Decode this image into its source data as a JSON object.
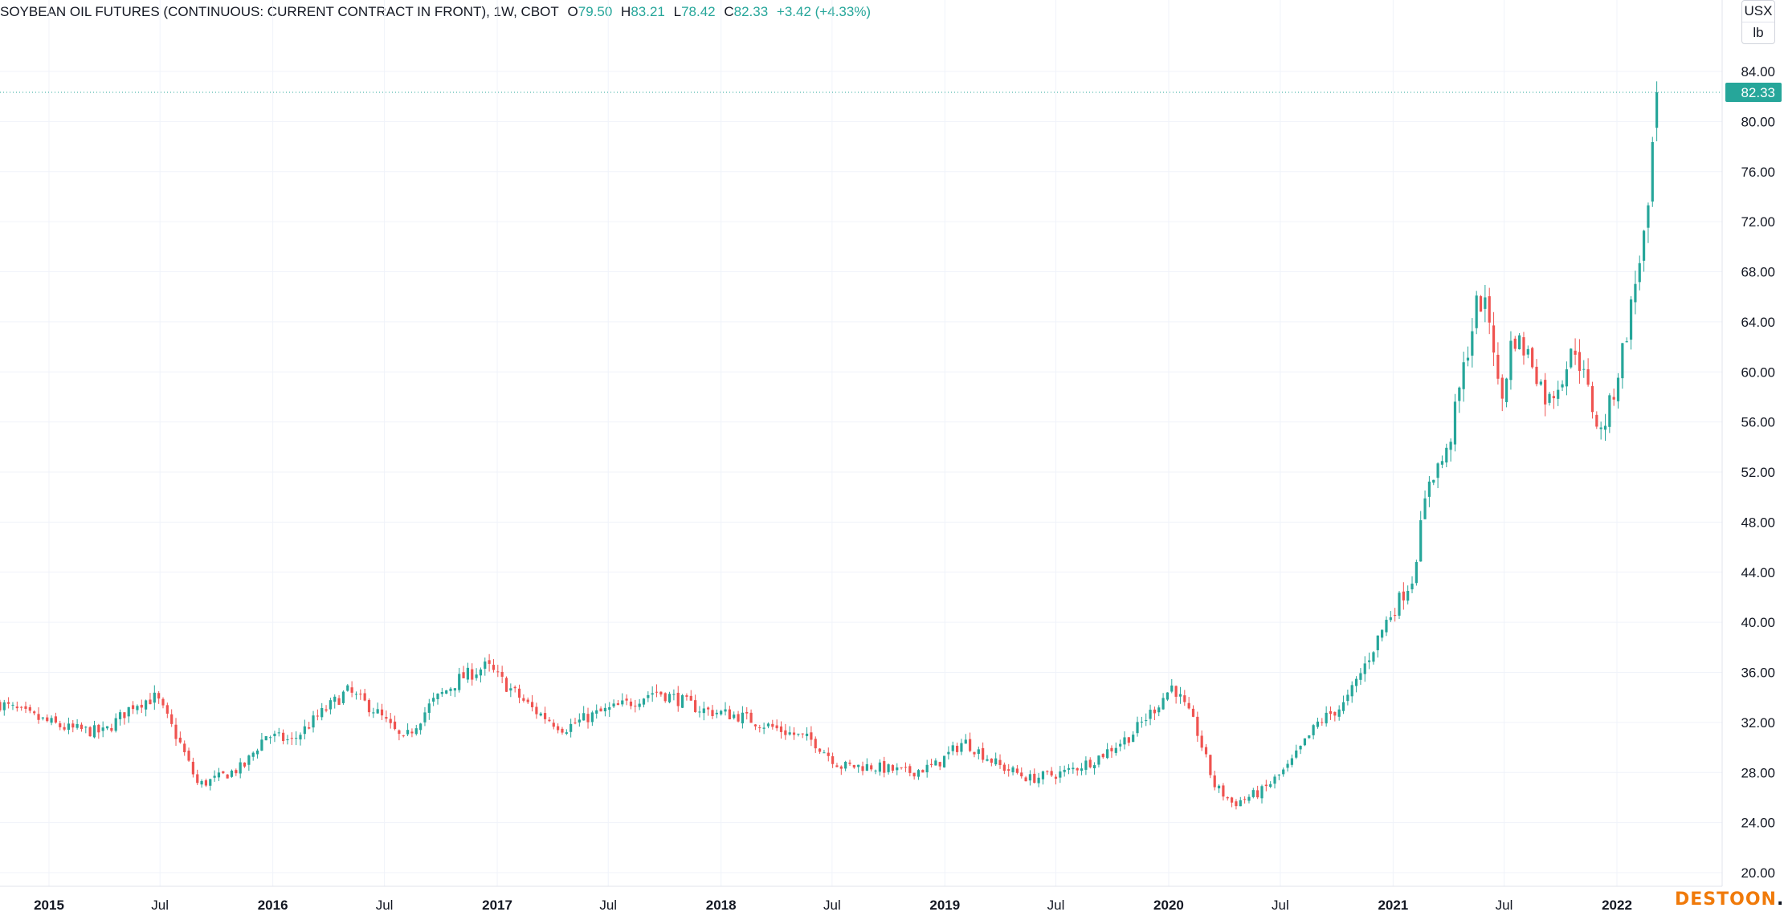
{
  "header": {
    "symbol": "SOYBEAN OIL FUTURES (CONTINUOUS: CURRENT CONTRACT IN FRONT), 1W, CBOT",
    "open_label": "O",
    "open": "79.50",
    "high_label": "H",
    "high": "83.21",
    "low_label": "L",
    "low": "78.42",
    "close_label": "C",
    "close": "82.33",
    "change": "+3.42 (+4.33%)"
  },
  "unit": {
    "currency": "USX",
    "measure": "lb"
  },
  "watermark": {
    "brand": "DESTOON",
    "suffix": ".COM"
  },
  "colors": {
    "up": "#26a69a",
    "down": "#ef5350",
    "last_price": "#26a69a",
    "grid": "#f0f3fa",
    "axis_text": "#131722"
  },
  "chart_data": {
    "type": "candlestick",
    "interval": "1W",
    "ylim": [
      20,
      84
    ],
    "yticks": [
      "84.00",
      "80.00",
      "76.00",
      "72.00",
      "68.00",
      "64.00",
      "60.00",
      "56.00",
      "52.00",
      "48.00",
      "44.00",
      "40.00",
      "36.00",
      "32.00",
      "28.00",
      "24.00",
      "20.00"
    ],
    "xticks": [
      {
        "label": "2015",
        "date": "2015-01-01",
        "bold": true
      },
      {
        "label": "Jul",
        "date": "2015-07-01",
        "bold": false
      },
      {
        "label": "2016",
        "date": "2016-01-01",
        "bold": true
      },
      {
        "label": "Jul",
        "date": "2016-07-01",
        "bold": false
      },
      {
        "label": "2017",
        "date": "2017-01-01",
        "bold": true
      },
      {
        "label": "Jul",
        "date": "2017-07-01",
        "bold": false
      },
      {
        "label": "2018",
        "date": "2018-01-01",
        "bold": true
      },
      {
        "label": "Jul",
        "date": "2018-07-01",
        "bold": false
      },
      {
        "label": "2019",
        "date": "2019-01-01",
        "bold": true
      },
      {
        "label": "Jul",
        "date": "2019-07-01",
        "bold": false
      },
      {
        "label": "2020",
        "date": "2020-01-01",
        "bold": true
      },
      {
        "label": "Jul",
        "date": "2020-07-01",
        "bold": false
      },
      {
        "label": "2021",
        "date": "2021-01-01",
        "bold": true
      },
      {
        "label": "Jul",
        "date": "2021-07-01",
        "bold": false
      },
      {
        "label": "2022",
        "date": "2022-01-01",
        "bold": true
      }
    ],
    "last_price": "82.33",
    "series_start": "2014-10-13",
    "series_end": "2022-03-07",
    "price_path": [
      [
        "2014-10-13",
        33.5
      ],
      [
        "2014-12-01",
        32.5
      ],
      [
        "2015-02-01",
        31.5
      ],
      [
        "2015-04-01",
        31.2
      ],
      [
        "2015-05-20",
        33.5
      ],
      [
        "2015-06-25",
        34.0
      ],
      [
        "2015-08-01",
        30.5
      ],
      [
        "2015-09-01",
        27.0
      ],
      [
        "2015-10-01",
        27.5
      ],
      [
        "2015-11-15",
        28.5
      ],
      [
        "2015-12-20",
        31.0
      ],
      [
        "2016-02-01",
        30.5
      ],
      [
        "2016-03-15",
        32.5
      ],
      [
        "2016-05-01",
        34.5
      ],
      [
        "2016-06-15",
        33.0
      ],
      [
        "2016-08-01",
        30.5
      ],
      [
        "2016-09-15",
        33.5
      ],
      [
        "2016-11-01",
        35.5
      ],
      [
        "2016-12-15",
        36.5
      ],
      [
        "2017-01-15",
        35.0
      ],
      [
        "2017-03-01",
        33.0
      ],
      [
        "2017-04-20",
        31.5
      ],
      [
        "2017-06-01",
        32.5
      ],
      [
        "2017-08-01",
        33.5
      ],
      [
        "2017-09-15",
        34.5
      ],
      [
        "2017-10-15",
        34.0
      ],
      [
        "2017-12-01",
        33.0
      ],
      [
        "2018-02-01",
        32.5
      ],
      [
        "2018-04-01",
        31.5
      ],
      [
        "2018-06-01",
        30.5
      ],
      [
        "2018-07-15",
        28.5
      ],
      [
        "2018-09-01",
        28.5
      ],
      [
        "2018-11-01",
        28.0
      ],
      [
        "2018-12-15",
        28.5
      ],
      [
        "2019-02-01",
        30.5
      ],
      [
        "2019-04-01",
        28.5
      ],
      [
        "2019-05-20",
        27.5
      ],
      [
        "2019-07-15",
        28.0
      ],
      [
        "2019-09-01",
        29.0
      ],
      [
        "2019-11-01",
        31.0
      ],
      [
        "2019-12-15",
        33.5
      ],
      [
        "2020-01-08",
        35.0
      ],
      [
        "2020-02-15",
        31.5
      ],
      [
        "2020-03-15",
        27.0
      ],
      [
        "2020-04-15",
        25.5
      ],
      [
        "2020-06-01",
        26.5
      ],
      [
        "2020-07-15",
        28.5
      ],
      [
        "2020-09-01",
        32.0
      ],
      [
        "2020-10-15",
        33.5
      ],
      [
        "2020-11-15",
        36.5
      ],
      [
        "2020-12-20",
        40.0
      ],
      [
        "2021-02-01",
        43.5
      ],
      [
        "2021-03-01",
        51.5
      ],
      [
        "2021-03-30",
        53.5
      ],
      [
        "2021-04-25",
        60.0
      ],
      [
        "2021-05-20",
        66.0
      ],
      [
        "2021-06-10",
        64.0
      ],
      [
        "2021-06-25",
        57.0
      ],
      [
        "2021-07-15",
        63.0
      ],
      [
        "2021-08-15",
        61.0
      ],
      [
        "2021-09-10",
        57.5
      ],
      [
        "2021-10-01",
        59.5
      ],
      [
        "2021-10-25",
        62.0
      ],
      [
        "2021-11-20",
        57.5
      ],
      [
        "2021-12-05",
        55.0
      ],
      [
        "2021-12-25",
        58.0
      ],
      [
        "2022-01-20",
        64.0
      ],
      [
        "2022-02-10",
        70.0
      ],
      [
        "2022-02-25",
        73.0
      ],
      [
        "2022-03-01",
        79.5
      ],
      [
        "2022-03-07",
        82.33
      ]
    ]
  }
}
